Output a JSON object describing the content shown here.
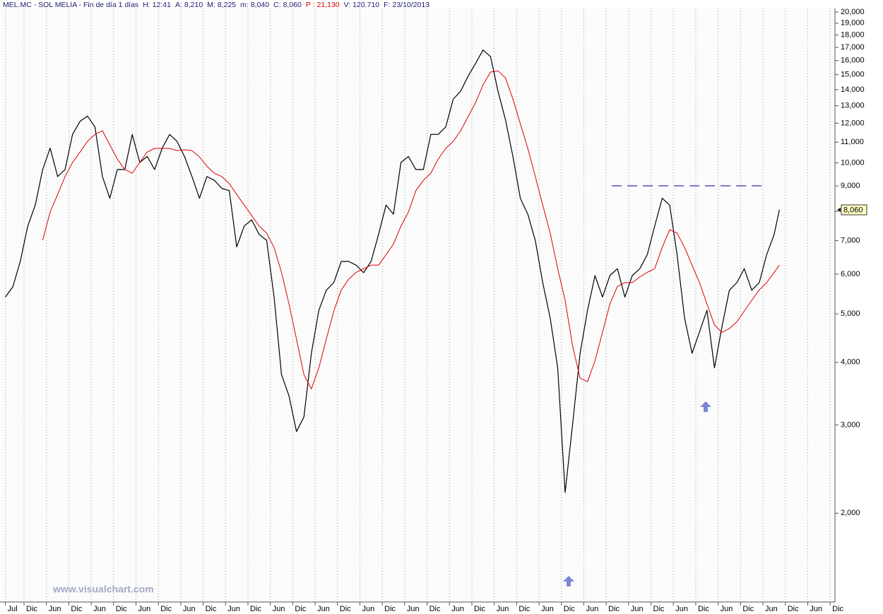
{
  "chart_data": {
    "type": "line",
    "header": {
      "title": "MEL.MC - SOL MELIA - Fin de día 1 días",
      "fields": [
        {
          "label": "H:",
          "value": "12:41",
          "color": "#1a1a6e"
        },
        {
          "label": "A:",
          "value": "8,210",
          "color": "#1a1a6e"
        },
        {
          "label": "M:",
          "value": "8,225",
          "color": "#1a1a6e"
        },
        {
          "label": "m:",
          "value": "8,040",
          "color": "#1a1a6e"
        },
        {
          "label": "C:",
          "value": "8,060",
          "color": "#1a1a6e"
        },
        {
          "label": "P :",
          "value": "21,130",
          "color": "#d00000"
        },
        {
          "label": "V:",
          "value": "120.710",
          "color": "#1a1a6e"
        },
        {
          "label": "F:",
          "value": "23/10/2013",
          "color": "#1a1a6e"
        }
      ]
    },
    "watermark": "www.visualchart.com",
    "log_y": true,
    "grid_x": true,
    "xlim": [
      -1.25,
      222.3
    ],
    "ylim": [
      1.33,
      20.33
    ],
    "xticks": [
      {
        "value": 0,
        "label": "Jul"
      },
      {
        "value": 5,
        "label": "Dic"
      },
      {
        "value": 11,
        "label": "Jun"
      },
      {
        "value": 17,
        "label": "Dic"
      },
      {
        "value": 23,
        "label": "Jun"
      },
      {
        "value": 29,
        "label": "Dic"
      },
      {
        "value": 35,
        "label": "Jun"
      },
      {
        "value": 41,
        "label": "Dic"
      },
      {
        "value": 47,
        "label": "Jun"
      },
      {
        "value": 53,
        "label": "Dic"
      },
      {
        "value": 59,
        "label": "Jun"
      },
      {
        "value": 65,
        "label": "Dic"
      },
      {
        "value": 71,
        "label": "Jun"
      },
      {
        "value": 77,
        "label": "Dic"
      },
      {
        "value": 83,
        "label": "Jun"
      },
      {
        "value": 89,
        "label": "Dic"
      },
      {
        "value": 95,
        "label": "Jun"
      },
      {
        "value": 101,
        "label": "Dic"
      },
      {
        "value": 107,
        "label": "Jun"
      },
      {
        "value": 113,
        "label": "Dic"
      },
      {
        "value": 119,
        "label": "Jun"
      },
      {
        "value": 125,
        "label": "Dic"
      },
      {
        "value": 131,
        "label": "Jun"
      },
      {
        "value": 137,
        "label": "Dic"
      },
      {
        "value": 143,
        "label": "Jun"
      },
      {
        "value": 149,
        "label": "Dic"
      },
      {
        "value": 155,
        "label": "Jun"
      },
      {
        "value": 161,
        "label": "Dic"
      },
      {
        "value": 167,
        "label": "Jun"
      },
      {
        "value": 173,
        "label": "Dic"
      },
      {
        "value": 179,
        "label": "Jun"
      },
      {
        "value": 185,
        "label": "Dic"
      },
      {
        "value": 191,
        "label": "Jun"
      },
      {
        "value": 197,
        "label": "Dic"
      },
      {
        "value": 203,
        "label": "Jun"
      },
      {
        "value": 209,
        "label": "Dic"
      },
      {
        "value": 215,
        "label": "Jun"
      },
      {
        "value": 221,
        "label": "Dic"
      }
    ],
    "yticks": [
      {
        "value": 2,
        "label": "2,000"
      },
      {
        "value": 3,
        "label": "3,000"
      },
      {
        "value": 4,
        "label": "4,000"
      },
      {
        "value": 5,
        "label": "5,000"
      },
      {
        "value": 6,
        "label": "6,000"
      },
      {
        "value": 7,
        "label": "7,000"
      },
      {
        "value": 8,
        "label": "8,000"
      },
      {
        "value": 9,
        "label": "9,000"
      },
      {
        "value": 10,
        "label": "10,000"
      },
      {
        "value": 11,
        "label": "11,000"
      },
      {
        "value": 12,
        "label": "12,000"
      },
      {
        "value": 13,
        "label": "13,000"
      },
      {
        "value": 14,
        "label": "14,000"
      },
      {
        "value": 15,
        "label": "15,000"
      },
      {
        "value": 16,
        "label": "16,000"
      },
      {
        "value": 17,
        "label": "17,000"
      },
      {
        "value": 18,
        "label": "18,000"
      },
      {
        "value": 19,
        "label": "19,000"
      },
      {
        "value": 20,
        "label": "20,000"
      }
    ],
    "x": [
      0,
      2,
      4,
      6,
      8,
      10,
      12,
      14,
      16,
      18,
      20,
      22,
      24,
      26,
      28,
      30,
      32,
      34,
      36,
      38,
      40,
      42,
      44,
      46,
      48,
      50,
      52,
      54,
      56,
      58,
      60,
      62,
      64,
      66,
      68,
      70,
      72,
      74,
      76,
      78,
      80,
      82,
      84,
      86,
      88,
      90,
      92,
      94,
      96,
      98,
      100,
      102,
      104,
      106,
      108,
      110,
      112,
      114,
      116,
      118,
      120,
      122,
      124,
      126,
      128,
      130,
      132,
      134,
      136,
      138,
      140,
      142,
      144,
      146,
      148,
      150,
      152,
      154,
      156,
      158,
      160,
      162,
      164,
      166,
      168,
      170,
      172,
      174,
      176,
      178,
      180,
      182,
      184,
      186,
      188,
      190,
      192,
      194,
      196,
      198,
      200,
      202,
      204,
      206,
      207.4
    ],
    "series": [
      {
        "color": "#000000",
        "values": [
          5.4,
          5.66,
          6.36,
          7.48,
          8.24,
          9.7,
          10.7,
          9.39,
          9.7,
          11.4,
          12.1,
          12.4,
          11.8,
          9.39,
          8.5,
          9.7,
          9.7,
          11.4,
          10.02,
          10.3,
          9.7,
          10.69,
          11.4,
          11.04,
          10.3,
          9.39,
          8.5,
          9.39,
          9.23,
          8.9,
          8.8,
          6.8,
          7.48,
          7.7,
          7.2,
          7.01,
          5.4,
          3.78,
          3.43,
          2.91,
          3.11,
          4.17,
          5.08,
          5.57,
          5.77,
          6.36,
          6.36,
          6.25,
          6.04,
          6.36,
          7.2,
          8.24,
          7.9,
          10.02,
          10.3,
          9.7,
          9.7,
          11.4,
          11.4,
          11.8,
          13.4,
          13.9,
          14.9,
          15.8,
          16.8,
          16.3,
          13.9,
          12.2,
          10.3,
          8.5,
          7.9,
          7.0,
          5.77,
          4.9,
          3.9,
          2.2,
          3.01,
          4.17,
          5.08,
          5.96,
          5.4,
          5.96,
          6.15,
          5.4,
          5.96,
          6.15,
          6.56,
          7.48,
          8.5,
          8.24,
          6.56,
          4.9,
          4.17,
          4.6,
          5.08,
          3.9,
          4.7,
          5.57,
          5.77,
          6.15,
          5.57,
          5.77,
          6.56,
          7.2,
          8.06
        ]
      },
      {
        "color": "#e00000",
        "values": [
          null,
          null,
          null,
          null,
          null,
          7.01,
          7.98,
          8.65,
          9.39,
          10.02,
          10.51,
          11.04,
          11.4,
          11.59,
          10.86,
          10.18,
          9.7,
          9.54,
          10.02,
          10.51,
          10.69,
          10.69,
          10.69,
          10.58,
          10.62,
          10.58,
          10.28,
          9.85,
          9.54,
          9.39,
          9.09,
          8.65,
          8.24,
          7.85,
          7.48,
          7.24,
          6.78,
          6.05,
          5.23,
          4.45,
          3.78,
          3.54,
          3.9,
          4.45,
          5.06,
          5.58,
          5.86,
          6.05,
          6.15,
          6.25,
          6.25,
          6.56,
          6.89,
          7.48,
          7.98,
          8.8,
          9.23,
          9.54,
          10.18,
          10.69,
          11.04,
          11.59,
          12.37,
          13.2,
          14.31,
          15.18,
          15.27,
          14.78,
          13.41,
          11.97,
          10.69,
          9.39,
          8.24,
          7.24,
          6.15,
          5.32,
          4.31,
          3.72,
          3.66,
          4.03,
          4.59,
          5.23,
          5.67,
          5.77,
          5.77,
          5.92,
          6.05,
          6.15,
          6.78,
          7.36,
          7.24,
          6.78,
          6.25,
          5.77,
          5.23,
          4.75,
          4.59,
          4.67,
          4.82,
          5.06,
          5.32,
          5.58,
          5.77,
          6.05,
          6.25
        ]
      }
    ],
    "last_value": {
      "value": 8.06,
      "label": "8,060"
    },
    "hline": {
      "value": 9,
      "x": [
        162.5,
        204.1
      ],
      "color": "#00008b"
    }
  }
}
